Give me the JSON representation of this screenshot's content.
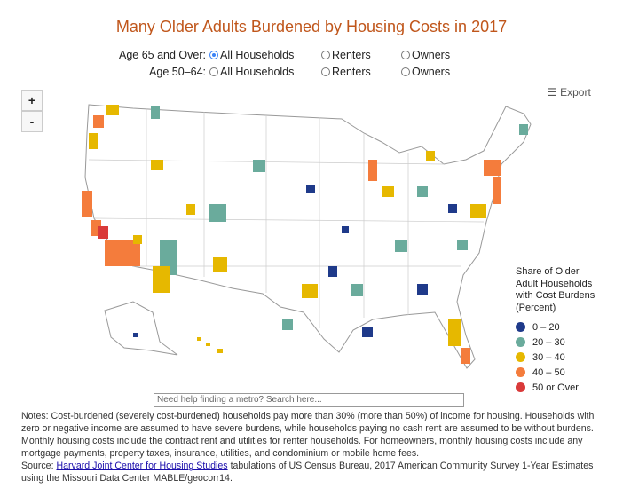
{
  "title": "Many Older Adults Burdened by Housing Costs in 2017",
  "controls": [
    {
      "label": "Age 65 and Over:",
      "options": [
        "All Households",
        "Renters",
        "Owners"
      ],
      "selected": 0
    },
    {
      "label": "Age 50–64:",
      "options": [
        "All Households",
        "Renters",
        "Owners"
      ],
      "selected": null
    }
  ],
  "zoom": [
    "+",
    "-"
  ],
  "export": "Export",
  "legend": {
    "title": [
      "Share of Older",
      "Adult Households",
      "with Cost Burdens",
      "(Percent)"
    ],
    "items": [
      {
        "label": "0 – 20",
        "color": "#1f3a8a"
      },
      {
        "label": "20 – 30",
        "color": "#6aab9c"
      },
      {
        "label": "30 – 40",
        "color": "#e6b800"
      },
      {
        "label": "40 – 50",
        "color": "#f47c3c"
      },
      {
        "label": "50 or Over",
        "color": "#d93a3a"
      }
    ]
  },
  "search": "Need help finding a metro? Search here...",
  "notes": "Notes: Cost-burdened (severely cost-burdened) households pay more than 30% (more than 50%) of income for housing. Households with zero or negative income are assumed to have severe burdens, while households paying no cash rent are assumed to be without burdens. Monthly housing costs include the contract rent and utilities for renter households. For homeowners, monthly housing costs include any mortgage payments, property taxes, insurance, utilities, and condominium or mobile home fees.",
  "source": {
    "prefix": "Source:",
    "link": "Harvard Joint Center for Housing Studies",
    "rest": "tabulations of US Census Bureau, 2017 American Community Survey 1-Year Estimates using the Missouri Data Center MABLE/geocorr14."
  }
}
